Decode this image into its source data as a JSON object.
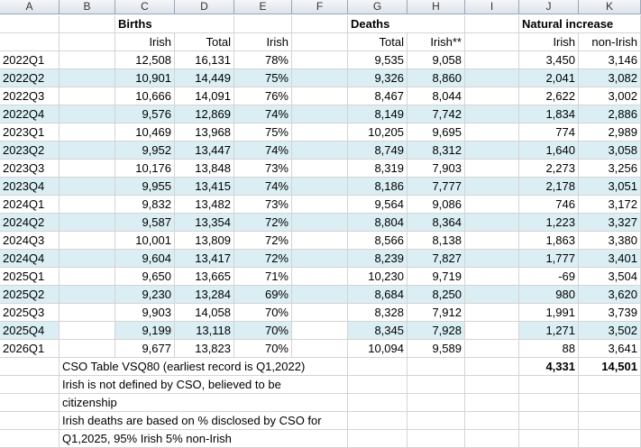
{
  "columns": [
    "A",
    "B",
    "C",
    "D",
    "E",
    "F",
    "G",
    "H",
    "I",
    "J",
    "K"
  ],
  "groups": {
    "births": "Births",
    "deaths": "Deaths",
    "natural": "Natural increase"
  },
  "subheaders": {
    "C": "Irish",
    "D": "Total",
    "E": "Irish",
    "G": "Total",
    "H": "Irish**",
    "J": "Irish",
    "K": "non-Irish"
  },
  "rows": [
    {
      "q": "2022Q1",
      "c": "12,508",
      "d": "16,131",
      "e": "78%",
      "g": "9,535",
      "h": "9,058",
      "j": "3,450",
      "k": "3,146",
      "hl": []
    },
    {
      "q": "2022Q2",
      "c": "10,901",
      "d": "14,449",
      "e": "75%",
      "g": "9,326",
      "h": "8,860",
      "j": "2,041",
      "k": "3,082",
      "hl": [
        "A",
        "B",
        "C",
        "D",
        "E",
        "F",
        "G",
        "H",
        "I",
        "J",
        "K"
      ]
    },
    {
      "q": "2022Q3",
      "c": "10,666",
      "d": "14,091",
      "e": "76%",
      "g": "8,467",
      "h": "8,044",
      "j": "2,622",
      "k": "3,002",
      "hl": []
    },
    {
      "q": "2022Q4",
      "c": "9,576",
      "d": "12,869",
      "e": "74%",
      "g": "8,149",
      "h": "7,742",
      "j": "1,834",
      "k": "2,886",
      "hl": [
        "A",
        "B",
        "C",
        "D",
        "E",
        "F",
        "G",
        "H",
        "I",
        "J",
        "K"
      ]
    },
    {
      "q": "2023Q1",
      "c": "10,469",
      "d": "13,968",
      "e": "75%",
      "g": "10,205",
      "h": "9,695",
      "j": "774",
      "k": "2,989",
      "hl": []
    },
    {
      "q": "2023Q2",
      "c": "9,952",
      "d": "13,447",
      "e": "74%",
      "g": "8,749",
      "h": "8,312",
      "j": "1,640",
      "k": "3,058",
      "hl": [
        "A",
        "B",
        "C",
        "D",
        "E",
        "F",
        "G",
        "H",
        "I",
        "J",
        "K"
      ]
    },
    {
      "q": "2023Q3",
      "c": "10,176",
      "d": "13,848",
      "e": "73%",
      "g": "8,319",
      "h": "7,903",
      "j": "2,273",
      "k": "3,256",
      "hl": []
    },
    {
      "q": "2023Q4",
      "c": "9,955",
      "d": "13,415",
      "e": "74%",
      "g": "8,186",
      "h": "7,777",
      "j": "2,178",
      "k": "3,051",
      "hl": [
        "A",
        "B",
        "C",
        "D",
        "E",
        "F",
        "G",
        "H",
        "I",
        "J",
        "K"
      ]
    },
    {
      "q": "2024Q1",
      "c": "9,832",
      "d": "13,482",
      "e": "73%",
      "g": "9,564",
      "h": "9,086",
      "j": "746",
      "k": "3,172",
      "hl": []
    },
    {
      "q": "2024Q2",
      "c": "9,587",
      "d": "13,354",
      "e": "72%",
      "g": "8,804",
      "h": "8,364",
      "j": "1,223",
      "k": "3,327",
      "hl": [
        "A",
        "B",
        "C",
        "D",
        "E",
        "F",
        "G",
        "H",
        "I",
        "J",
        "K"
      ]
    },
    {
      "q": "2024Q3",
      "c": "10,001",
      "d": "13,809",
      "e": "72%",
      "g": "8,566",
      "h": "8,138",
      "j": "1,863",
      "k": "3,380",
      "hl": []
    },
    {
      "q": "2024Q4",
      "c": "9,604",
      "d": "13,417",
      "e": "72%",
      "g": "8,239",
      "h": "7,827",
      "j": "1,777",
      "k": "3,401",
      "hl": [
        "A",
        "B",
        "C",
        "D",
        "E",
        "F",
        "G",
        "H",
        "I",
        "J",
        "K"
      ]
    },
    {
      "q": "2025Q1",
      "c": "9,650",
      "d": "13,665",
      "e": "71%",
      "g": "10,230",
      "h": "9,719",
      "j": "-69",
      "k": "3,504",
      "hl": []
    },
    {
      "q": "2025Q2",
      "c": "9,230",
      "d": "13,284",
      "e": "69%",
      "g": "8,684",
      "h": "8,250",
      "j": "980",
      "k": "3,620",
      "hl": [
        "A",
        "B",
        "C",
        "D",
        "E",
        "F",
        "G",
        "H",
        "I",
        "J",
        "K"
      ]
    },
    {
      "q": "2025Q3",
      "c": "9,903",
      "d": "14,058",
      "e": "70%",
      "g": "8,328",
      "h": "7,912",
      "j": "1,991",
      "k": "3,739",
      "hl": []
    },
    {
      "q": "2025Q4",
      "c": "9,199",
      "d": "13,118",
      "e": "70%",
      "g": "8,345",
      "h": "7,928",
      "j": "1,271",
      "k": "3,502",
      "hl": [
        "A",
        "C",
        "D",
        "E",
        "G",
        "H",
        "J",
        "K"
      ]
    },
    {
      "q": "2026Q1",
      "c": "9,677",
      "d": "13,823",
      "e": "70%",
      "g": "10,094",
      "h": "9,589",
      "j": "88",
      "k": "3,641",
      "hl": []
    }
  ],
  "totals": {
    "j": "4,331",
    "k": "14,501"
  },
  "notes": [
    "CSO Table VSQ80 (earliest record is Q1,2022)",
    "Irish is not defined by CSO, believed to be",
    "citizenship",
    "Irish deaths are based on % disclosed by CSO for",
    "Q1,2025, 95% Irish 5% non-Irish"
  ],
  "colors": {
    "highlight": "#daeef3",
    "grid": "#d4d4d4",
    "header_bg": "#dde3ec"
  }
}
